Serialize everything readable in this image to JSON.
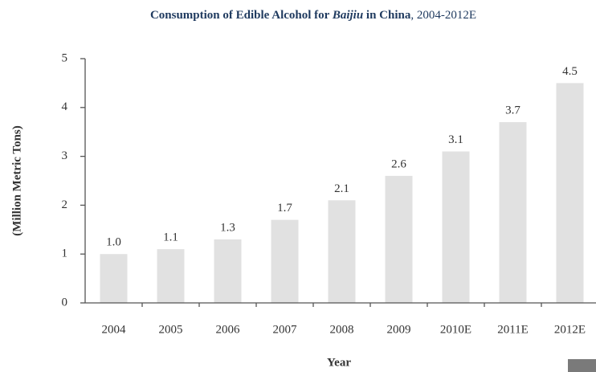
{
  "chart_data": {
    "type": "bar",
    "title": [
      "Consumption of Edible Alcohol for ",
      "Baijiu",
      " in China",
      ", 2004-2012E"
    ],
    "x_label": "Year",
    "y_label": "(Million Metric Tons)",
    "categories": [
      "2004",
      "2005",
      "2006",
      "2007",
      "2008",
      "2009",
      "2010E",
      "2011E",
      "2012E"
    ],
    "values": [
      1.0,
      1.1,
      1.3,
      1.7,
      2.1,
      2.6,
      3.1,
      3.7,
      4.5
    ],
    "value_labels": [
      "1.0",
      "1.1",
      "1.3",
      "1.7",
      "2.1",
      "2.6",
      "3.1",
      "3.7",
      "4.5"
    ],
    "color": "#e1e1e1",
    "ylim": [
      0,
      5
    ],
    "yticks": [
      0,
      1,
      2,
      3,
      4,
      5
    ],
    "grid": false
  }
}
